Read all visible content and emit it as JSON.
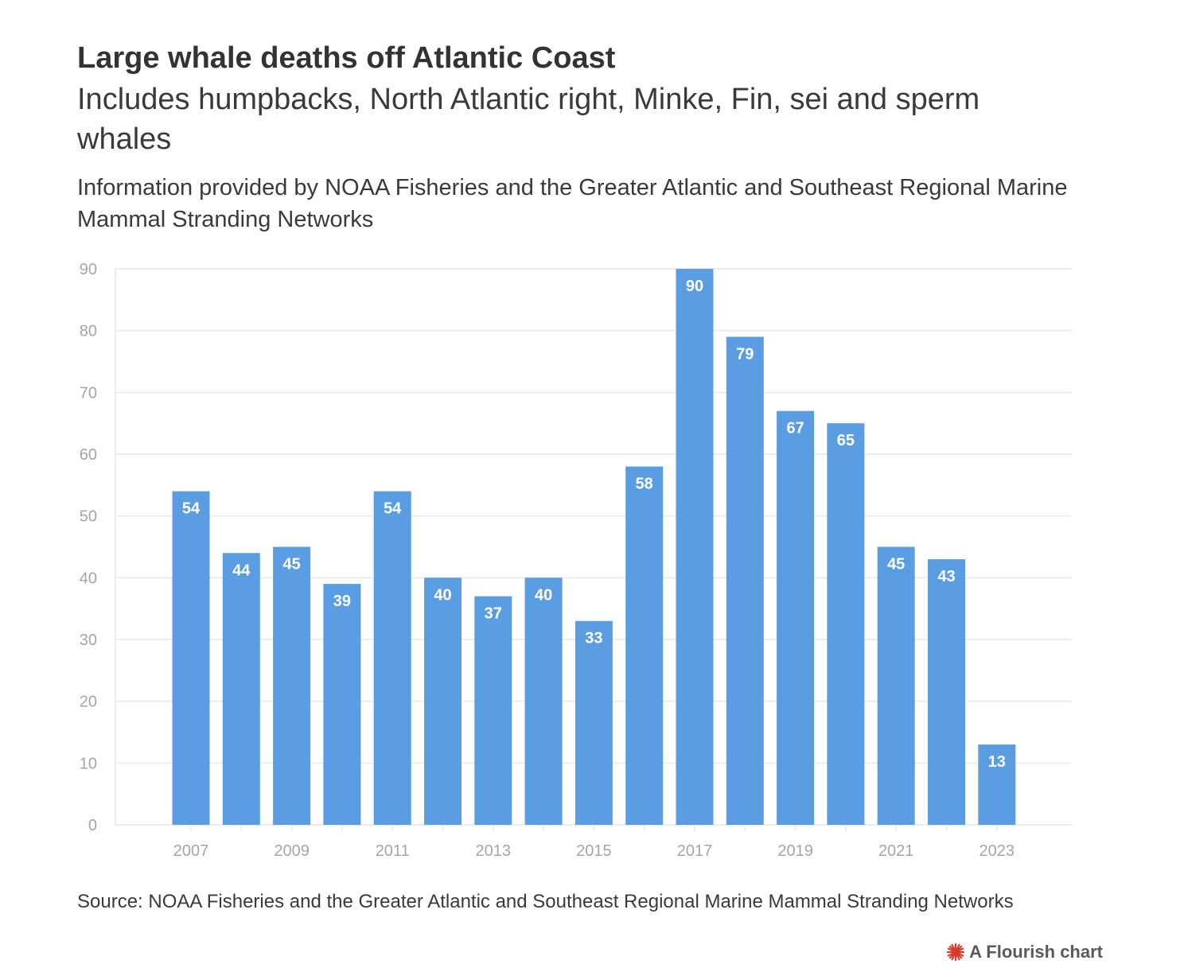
{
  "colors": {
    "bar": "#5a9de2",
    "grid": "#ececec",
    "axis_text": "#a5a5a5",
    "bar_label": "#ffffff",
    "credit_icon": "#d63a2a"
  },
  "header": {
    "title": "Large whale deaths off Atlantic Coast",
    "subtitle": "Includes humpbacks, North Atlantic right, Minke, Fin, sei and sperm whales",
    "note": "Information provided by NOAA Fisheries and the Greater Atlantic and Southeast Regional Marine Mammal Stranding Networks"
  },
  "footer": {
    "source": "Source: NOAA Fisheries and the Greater Atlantic and Southeast Regional Marine Mammal Stranding Networks",
    "credit": "A Flourish chart",
    "credit_icon": "flourish-logo-icon"
  },
  "chart_data": {
    "type": "bar",
    "title": "Large whale deaths off Atlantic Coast",
    "subtitle": "Includes humpbacks, North Atlantic right, Minke, Fin, sei and sperm whales",
    "xlabel": "",
    "ylabel": "",
    "ylim": [
      0,
      90
    ],
    "yticks": [
      0,
      10,
      20,
      30,
      40,
      50,
      60,
      70,
      80,
      90
    ],
    "xticks": [
      "2007",
      "2009",
      "2011",
      "2013",
      "2015",
      "2017",
      "2019",
      "2021",
      "2023"
    ],
    "categories": [
      "2007",
      "2008",
      "2009",
      "2010",
      "2011",
      "2012",
      "2013",
      "2014",
      "2015",
      "2016",
      "2017",
      "2018",
      "2019",
      "2020",
      "2021",
      "2022",
      "2023"
    ],
    "values": [
      54,
      44,
      45,
      39,
      54,
      40,
      37,
      40,
      33,
      58,
      90,
      79,
      67,
      65,
      45,
      43,
      13
    ],
    "data_labels": true,
    "grid": true,
    "legend": "none"
  }
}
